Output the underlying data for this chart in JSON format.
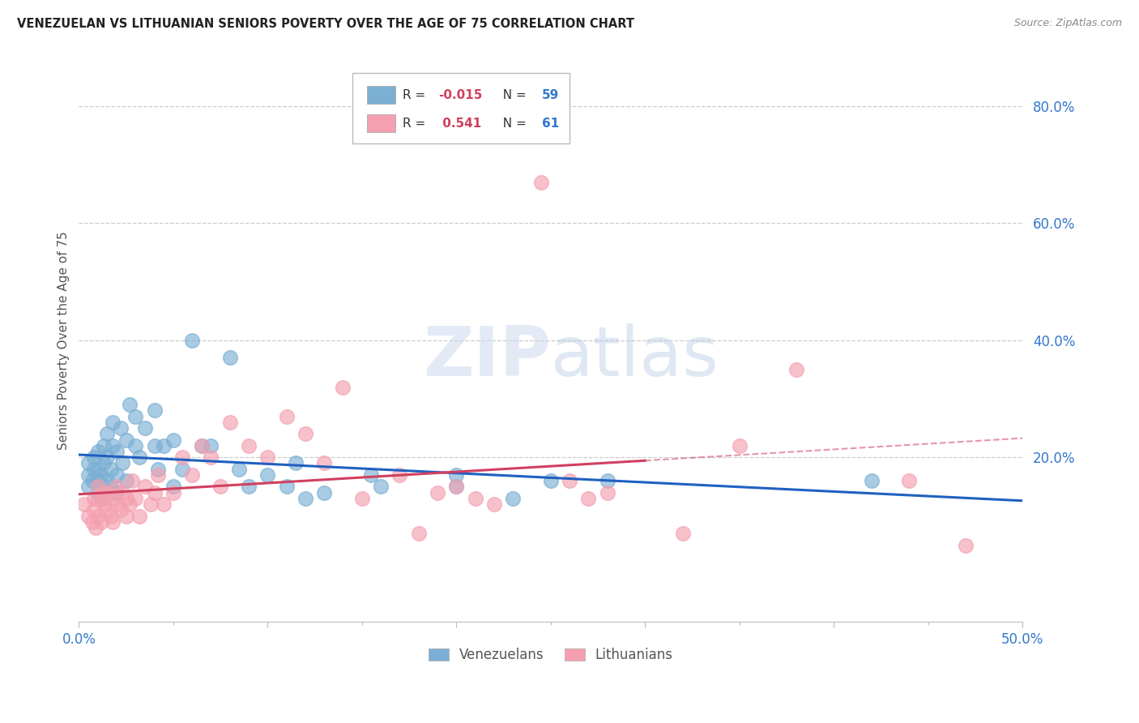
{
  "title": "VENEZUELAN VS LITHUANIAN SENIORS POVERTY OVER THE AGE OF 75 CORRELATION CHART",
  "source": "Source: ZipAtlas.com",
  "ylabel": "Seniors Poverty Over the Age of 75",
  "xlim": [
    0.0,
    0.5
  ],
  "ylim": [
    -0.08,
    0.88
  ],
  "ytick_vals": [
    0.2,
    0.4,
    0.6,
    0.8
  ],
  "ytick_labels": [
    "20.0%",
    "40.0%",
    "60.0%",
    "80.0%"
  ],
  "xtick_vals": [
    0.0,
    0.1,
    0.2,
    0.3,
    0.4,
    0.5
  ],
  "xtick_labels": [
    "0.0%",
    "",
    "",
    "",
    "",
    "50.0%"
  ],
  "venezuelan_color": "#7bafd4",
  "lithuanian_color": "#f4a0b0",
  "trend_ven_color": "#2060c0",
  "trend_lit_color": "#d04060",
  "axis_color": "#3377cc",
  "grid_color": "#cccccc",
  "background_color": "#ffffff",
  "watermark": "ZIPatlas",
  "venezuelan_x": [
    0.005,
    0.005,
    0.005,
    0.007,
    0.008,
    0.008,
    0.01,
    0.01,
    0.01,
    0.01,
    0.012,
    0.012,
    0.013,
    0.013,
    0.015,
    0.015,
    0.015,
    0.017,
    0.017,
    0.018,
    0.018,
    0.02,
    0.02,
    0.02,
    0.022,
    0.023,
    0.025,
    0.025,
    0.027,
    0.03,
    0.03,
    0.032,
    0.035,
    0.04,
    0.04,
    0.042,
    0.045,
    0.05,
    0.05,
    0.055,
    0.06,
    0.065,
    0.07,
    0.08,
    0.085,
    0.09,
    0.1,
    0.11,
    0.115,
    0.12,
    0.13,
    0.155,
    0.16,
    0.2,
    0.2,
    0.23,
    0.25,
    0.28,
    0.42
  ],
  "venezuelan_y": [
    0.17,
    0.19,
    0.15,
    0.16,
    0.18,
    0.2,
    0.14,
    0.16,
    0.18,
    0.21,
    0.13,
    0.17,
    0.19,
    0.22,
    0.16,
    0.2,
    0.24,
    0.15,
    0.18,
    0.22,
    0.26,
    0.14,
    0.17,
    0.21,
    0.25,
    0.19,
    0.16,
    0.23,
    0.29,
    0.22,
    0.27,
    0.2,
    0.25,
    0.22,
    0.28,
    0.18,
    0.22,
    0.23,
    0.15,
    0.18,
    0.4,
    0.22,
    0.22,
    0.37,
    0.18,
    0.15,
    0.17,
    0.15,
    0.19,
    0.13,
    0.14,
    0.17,
    0.15,
    0.17,
    0.15,
    0.13,
    0.16,
    0.16,
    0.16
  ],
  "lithuanian_x": [
    0.003,
    0.005,
    0.007,
    0.008,
    0.008,
    0.009,
    0.01,
    0.01,
    0.01,
    0.012,
    0.013,
    0.013,
    0.015,
    0.015,
    0.017,
    0.018,
    0.018,
    0.02,
    0.02,
    0.022,
    0.023,
    0.025,
    0.025,
    0.027,
    0.028,
    0.03,
    0.032,
    0.035,
    0.038,
    0.04,
    0.042,
    0.045,
    0.05,
    0.055,
    0.06,
    0.065,
    0.07,
    0.075,
    0.08,
    0.09,
    0.1,
    0.11,
    0.12,
    0.13,
    0.14,
    0.15,
    0.17,
    0.18,
    0.19,
    0.2,
    0.21,
    0.22,
    0.245,
    0.26,
    0.27,
    0.28,
    0.32,
    0.35,
    0.38,
    0.44,
    0.47
  ],
  "lithuanian_y": [
    0.12,
    0.1,
    0.09,
    0.11,
    0.13,
    0.08,
    0.1,
    0.13,
    0.15,
    0.09,
    0.12,
    0.14,
    0.11,
    0.14,
    0.1,
    0.09,
    0.13,
    0.12,
    0.15,
    0.11,
    0.14,
    0.1,
    0.13,
    0.12,
    0.16,
    0.13,
    0.1,
    0.15,
    0.12,
    0.14,
    0.17,
    0.12,
    0.14,
    0.2,
    0.17,
    0.22,
    0.2,
    0.15,
    0.26,
    0.22,
    0.2,
    0.27,
    0.24,
    0.19,
    0.32,
    0.13,
    0.17,
    0.07,
    0.14,
    0.15,
    0.13,
    0.12,
    0.67,
    0.16,
    0.13,
    0.14,
    0.07,
    0.22,
    0.35,
    0.16,
    0.05
  ]
}
